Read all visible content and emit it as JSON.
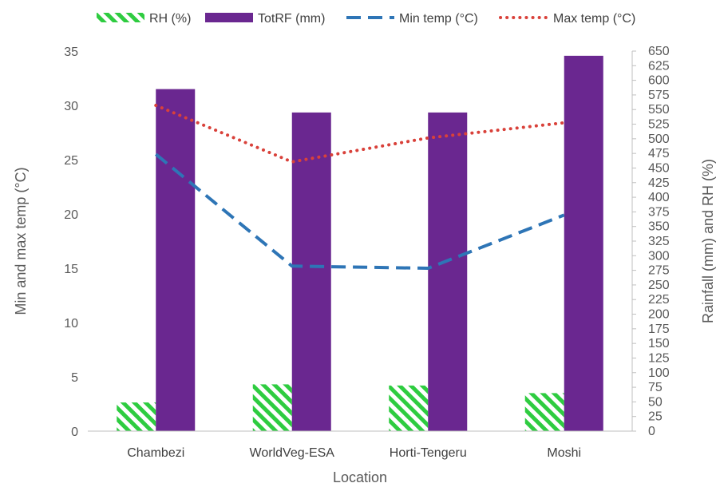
{
  "chart_data": {
    "type": "bar+line",
    "categories": [
      "Chambezi",
      "WorldVeg-ESA",
      "Horti-Tengeru",
      "Moshi"
    ],
    "xlabel": "Location",
    "ylabel_left": "Min and max temp (°C)",
    "ylabel_right": "Rainfall (mm) and RH (%)",
    "ylim_left": [
      0,
      35
    ],
    "ylim_right": [
      0,
      650
    ],
    "yticks_left": [
      0,
      5,
      10,
      15,
      20,
      25,
      30,
      35
    ],
    "yticks_right": [
      0,
      25,
      50,
      75,
      100,
      125,
      150,
      175,
      200,
      225,
      250,
      275,
      300,
      325,
      350,
      375,
      400,
      425,
      450,
      475,
      500,
      525,
      550,
      575,
      600,
      625,
      650
    ],
    "legend_position": "top",
    "grid": false,
    "series": [
      {
        "name": "RH (%)",
        "kind": "bar",
        "axis": "right",
        "pattern": "diagonal-hatch",
        "color": "#2ecc40",
        "values": [
          49,
          80,
          78,
          65
        ]
      },
      {
        "name": "TotRF (mm)",
        "kind": "bar",
        "axis": "right",
        "color": "#6a2790",
        "values": [
          585,
          545,
          545,
          642
        ]
      },
      {
        "name": "Min temp (°C)",
        "kind": "line",
        "style": "dashed",
        "axis": "left",
        "color": "#2e75b6",
        "values": [
          25.5,
          15.2,
          15.0,
          19.9
        ]
      },
      {
        "name": "Max temp (°C)",
        "kind": "line",
        "style": "dotted",
        "axis": "left",
        "color": "#d9413a",
        "values": [
          30.0,
          24.8,
          27.0,
          28.4
        ]
      }
    ]
  }
}
